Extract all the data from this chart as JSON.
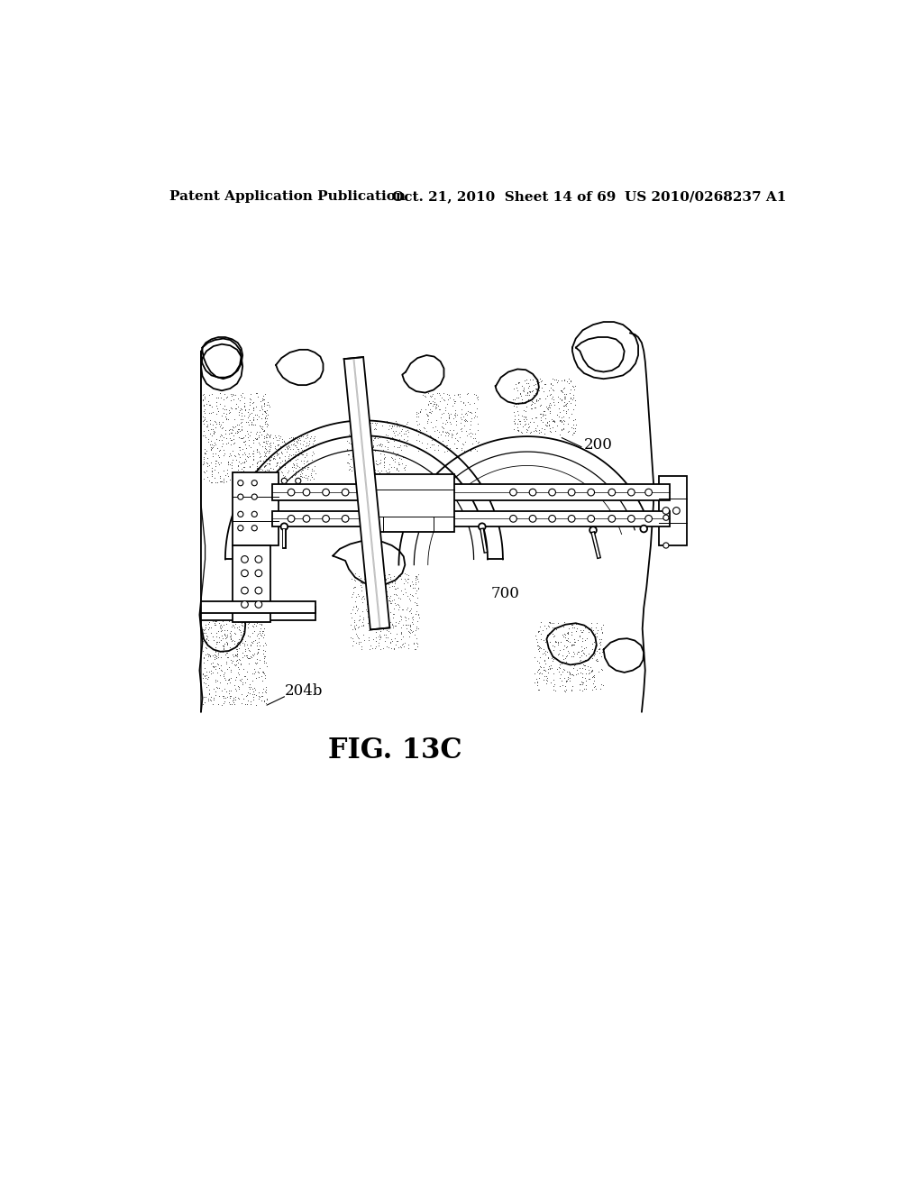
{
  "background_color": "#ffffff",
  "header_left": "Patent Application Publication",
  "header_mid": "Oct. 21, 2010  Sheet 14 of 69",
  "header_right": "US 2010/0268237 A1",
  "figure_label": "FIG. 13C",
  "label_200": "200",
  "label_700": "700",
  "label_204b": "204b",
  "line_color": "#000000",
  "lw": 1.3,
  "lw2": 0.9
}
